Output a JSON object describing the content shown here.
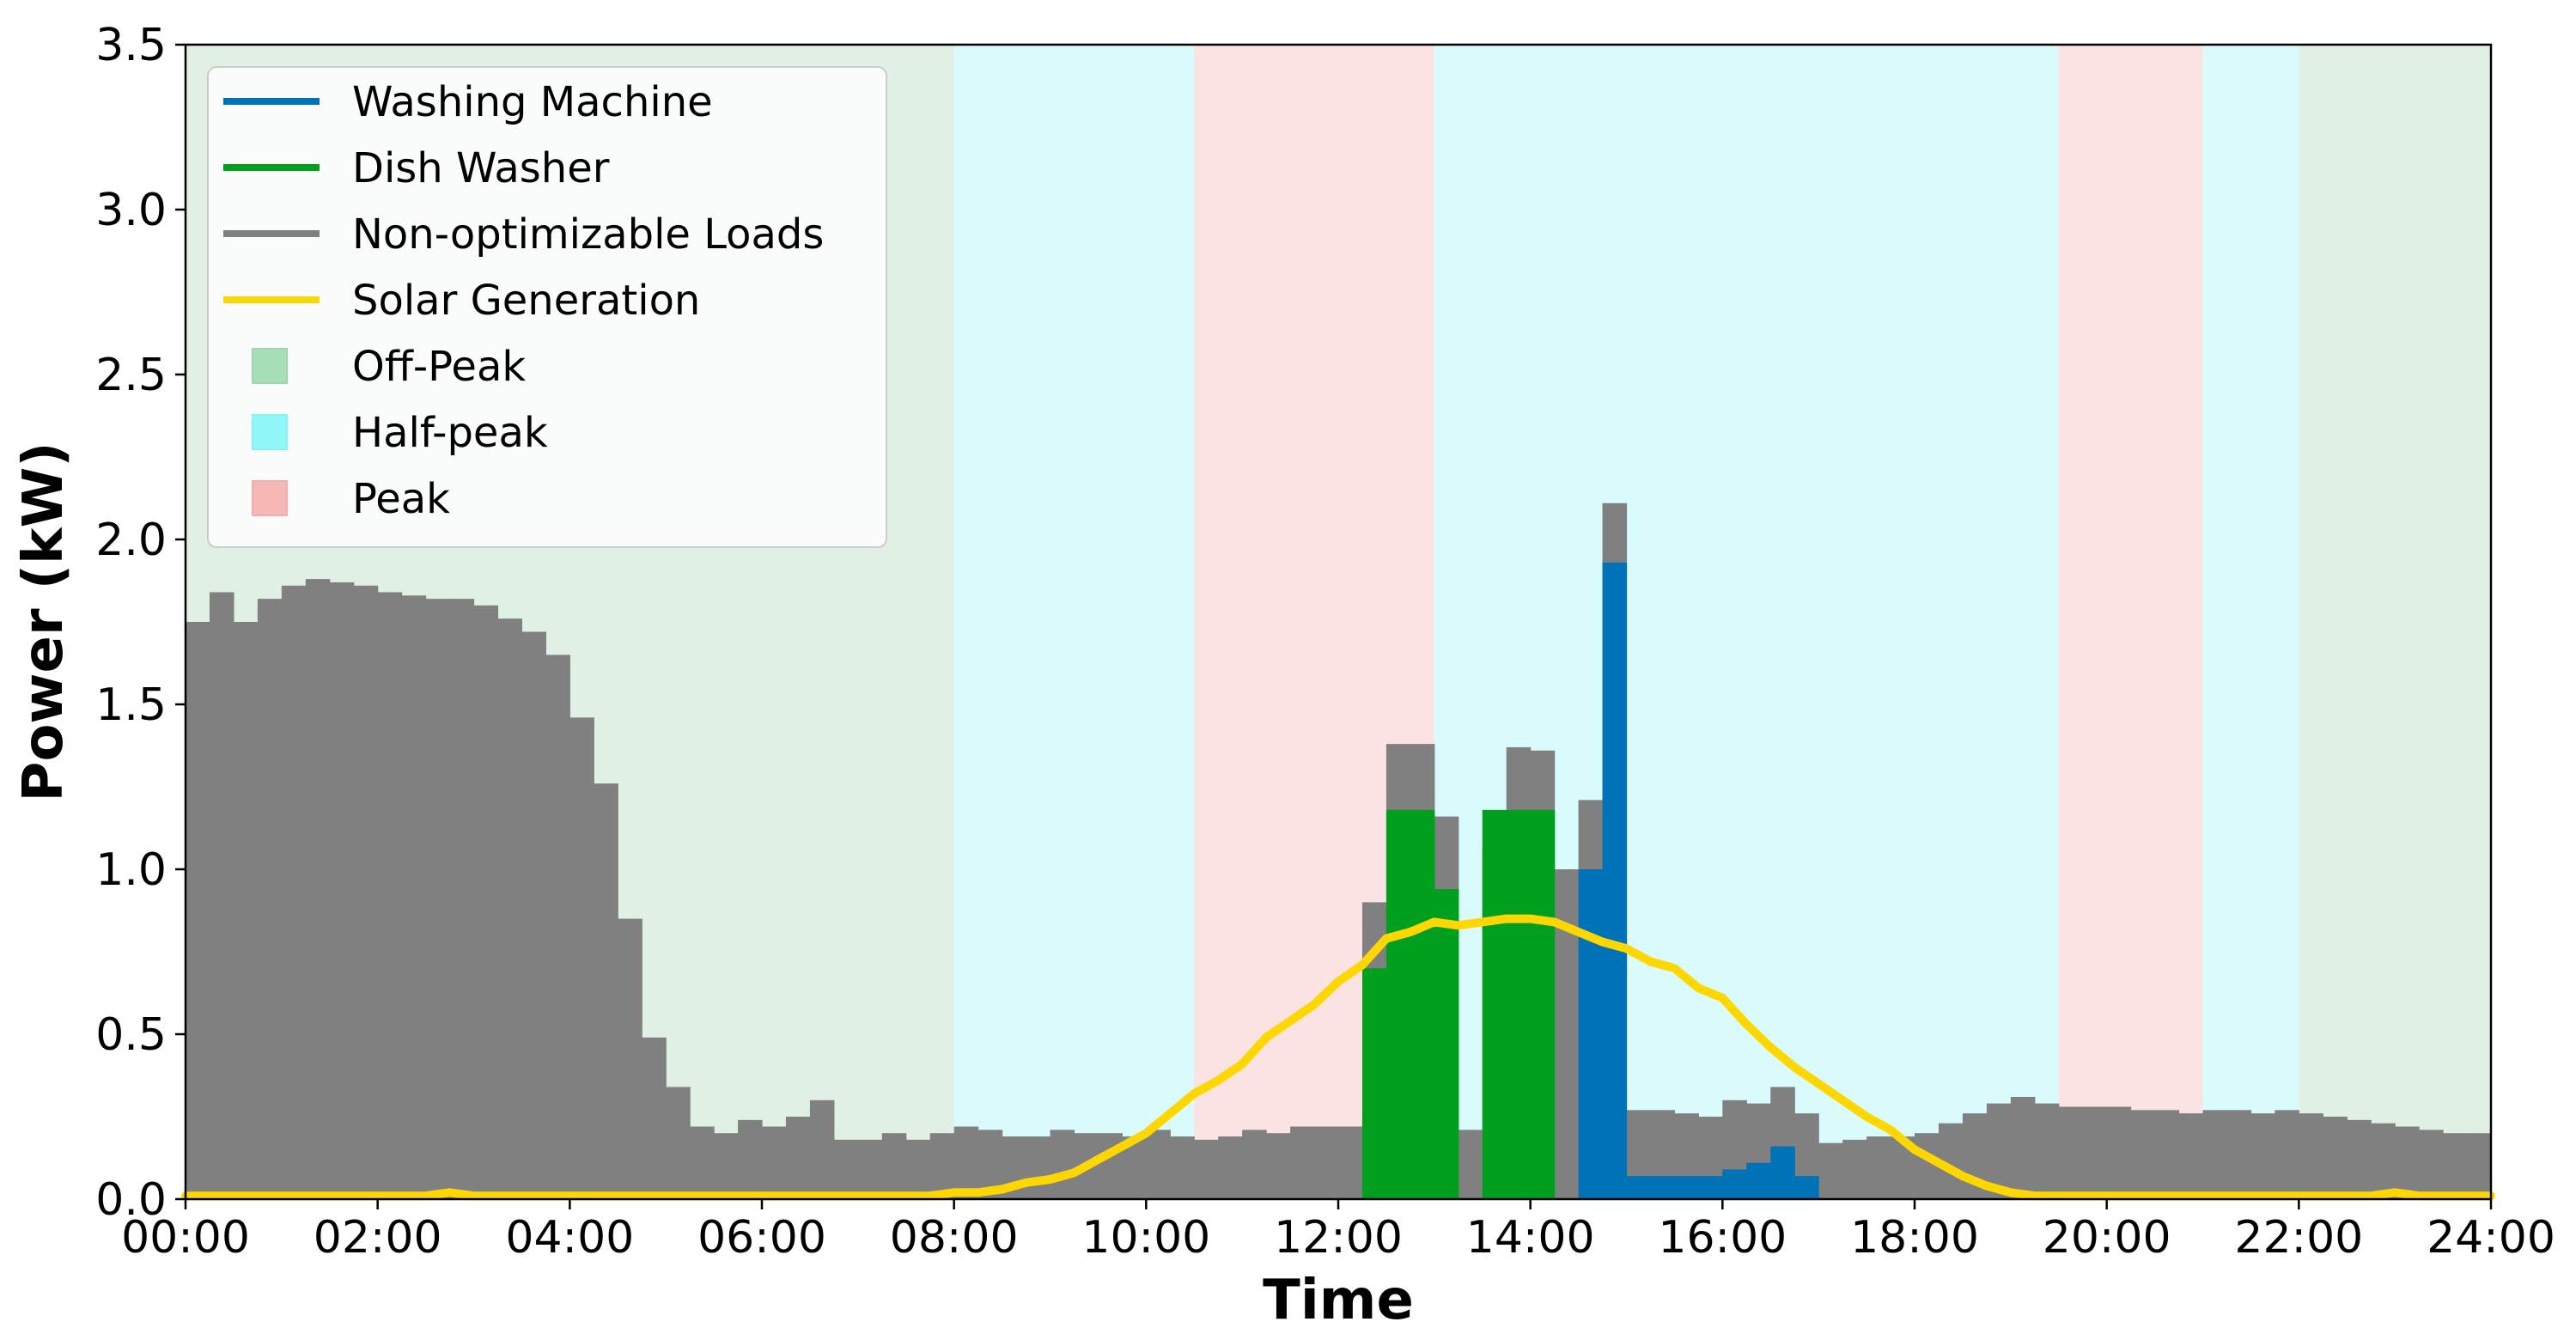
{
  "chart_data": {
    "type": "bar",
    "xlabel": "Time",
    "ylabel": "Power (kW)",
    "xlim": [
      0,
      24
    ],
    "ylim": [
      0,
      3.5
    ],
    "x_ticks": [
      "00:00",
      "02:00",
      "04:00",
      "06:00",
      "08:00",
      "10:00",
      "12:00",
      "14:00",
      "16:00",
      "18:00",
      "20:00",
      "22:00",
      "24:00"
    ],
    "y_ticks": [
      "0.0",
      "0.5",
      "1.0",
      "1.5",
      "2.0",
      "2.5",
      "3.0",
      "3.5"
    ],
    "grid": false,
    "legend_position": "top-left",
    "bin_width_hours": 0.25,
    "tariff_periods": [
      {
        "name": "Off-Peak",
        "start": 0,
        "end": 8
      },
      {
        "name": "Half-peak",
        "start": 8,
        "end": 10.5
      },
      {
        "name": "Peak",
        "start": 10.5,
        "end": 13
      },
      {
        "name": "Half-peak",
        "start": 13,
        "end": 19.5
      },
      {
        "name": "Peak",
        "start": 19.5,
        "end": 21
      },
      {
        "name": "Half-peak",
        "start": 21,
        "end": 22
      },
      {
        "name": "Off-Peak",
        "start": 22,
        "end": 24
      }
    ],
    "tariff_colors": {
      "Off-Peak": "#e0f0e4",
      "Half-peak": "#d9fbfb",
      "Peak": "#fce3e3"
    },
    "series": [
      {
        "name": "Non-optimizable Loads",
        "kind": "bar_total",
        "color": "#808080",
        "values": [
          1.75,
          1.84,
          1.75,
          1.82,
          1.86,
          1.88,
          1.87,
          1.86,
          1.84,
          1.83,
          1.82,
          1.82,
          1.8,
          1.76,
          1.72,
          1.65,
          1.46,
          1.26,
          0.85,
          0.49,
          0.34,
          0.22,
          0.2,
          0.24,
          0.22,
          0.25,
          0.3,
          0.18,
          0.18,
          0.2,
          0.18,
          0.2,
          0.22,
          0.21,
          0.19,
          0.19,
          0.21,
          0.2,
          0.2,
          0.19,
          0.21,
          0.19,
          0.18,
          0.19,
          0.21,
          0.2,
          0.22,
          0.22,
          0.22,
          0.9,
          1.38,
          1.38,
          1.16,
          0.21,
          1.06,
          1.37,
          1.36,
          1.0,
          1.21,
          2.11,
          0.27,
          0.27,
          0.26,
          0.25,
          0.3,
          0.29,
          0.34,
          0.26,
          0.17,
          0.18,
          0.19,
          0.19,
          0.2,
          0.23,
          0.26,
          0.29,
          0.31,
          0.29,
          0.28,
          0.28,
          0.28,
          0.27,
          0.27,
          0.26,
          0.27,
          0.27,
          0.26,
          0.27,
          0.26,
          0.25,
          0.24,
          0.23,
          0.22,
          0.21,
          0.2,
          0.2
        ]
      },
      {
        "name": "Dish Washer",
        "kind": "bar",
        "color": "#00a01e",
        "values": [
          0,
          0,
          0,
          0,
          0,
          0,
          0,
          0,
          0,
          0,
          0,
          0,
          0,
          0,
          0,
          0,
          0,
          0,
          0,
          0,
          0,
          0,
          0,
          0,
          0,
          0,
          0,
          0,
          0,
          0,
          0,
          0,
          0,
          0,
          0,
          0,
          0,
          0,
          0,
          0,
          0,
          0,
          0,
          0,
          0,
          0,
          0,
          0,
          0,
          0.7,
          1.18,
          1.18,
          0.94,
          0,
          1.18,
          1.18,
          1.18,
          0,
          0,
          0,
          0,
          0,
          0,
          0,
          0,
          0,
          0,
          0,
          0,
          0,
          0,
          0,
          0,
          0,
          0,
          0,
          0,
          0,
          0,
          0,
          0,
          0,
          0,
          0,
          0,
          0,
          0,
          0,
          0,
          0,
          0,
          0,
          0,
          0,
          0,
          0
        ]
      },
      {
        "name": "Washing Machine",
        "kind": "bar",
        "color": "#0072b8",
        "values": [
          0,
          0,
          0,
          0,
          0,
          0,
          0,
          0,
          0,
          0,
          0,
          0,
          0,
          0,
          0,
          0,
          0,
          0,
          0,
          0,
          0,
          0,
          0,
          0,
          0,
          0,
          0,
          0,
          0,
          0,
          0,
          0,
          0,
          0,
          0,
          0,
          0,
          0,
          0,
          0,
          0,
          0,
          0,
          0,
          0,
          0,
          0,
          0,
          0,
          0,
          0,
          0,
          0,
          0,
          0,
          0,
          0,
          0,
          1.0,
          1.93,
          0.07,
          0.07,
          0.07,
          0.07,
          0.09,
          0.11,
          0.16,
          0.07,
          0,
          0,
          0,
          0,
          0,
          0,
          0,
          0,
          0,
          0,
          0,
          0,
          0,
          0,
          0,
          0,
          0,
          0,
          0,
          0,
          0,
          0,
          0,
          0,
          0,
          0,
          0,
          0
        ]
      },
      {
        "name": "Solar Generation",
        "kind": "line",
        "color": "#ffd700",
        "x": [
          0,
          0.25,
          0.5,
          0.75,
          1,
          1.25,
          1.5,
          1.75,
          2,
          2.25,
          2.5,
          2.75,
          3,
          3.25,
          3.5,
          3.75,
          4,
          4.25,
          4.5,
          4.75,
          5,
          5.25,
          5.5,
          5.75,
          6,
          6.25,
          6.5,
          6.75,
          7,
          7.25,
          7.5,
          7.75,
          8,
          8.25,
          8.5,
          8.75,
          9,
          9.25,
          9.5,
          9.75,
          10,
          10.25,
          10.5,
          10.75,
          11,
          11.25,
          11.5,
          11.75,
          12,
          12.25,
          12.5,
          12.75,
          13,
          13.25,
          13.5,
          13.75,
          14,
          14.25,
          14.5,
          14.75,
          15,
          15.25,
          15.5,
          15.75,
          16,
          16.25,
          16.5,
          16.75,
          17,
          17.25,
          17.5,
          17.75,
          18,
          18.25,
          18.5,
          18.75,
          19,
          19.25,
          19.5,
          19.75,
          20,
          20.25,
          20.5,
          20.75,
          21,
          21.25,
          21.5,
          21.75,
          22,
          22.25,
          22.5,
          22.75,
          23,
          23.25,
          23.5,
          23.75,
          24
        ],
        "values": [
          0.01,
          0.01,
          0.01,
          0.01,
          0.01,
          0.01,
          0.01,
          0.01,
          0.01,
          0.01,
          0.01,
          0.02,
          0.01,
          0.01,
          0.01,
          0.01,
          0.01,
          0.01,
          0.01,
          0.01,
          0.01,
          0.01,
          0.01,
          0.01,
          0.01,
          0.01,
          0.01,
          0.01,
          0.01,
          0.01,
          0.01,
          0.01,
          0.02,
          0.02,
          0.03,
          0.05,
          0.06,
          0.08,
          0.12,
          0.16,
          0.2,
          0.26,
          0.32,
          0.36,
          0.41,
          0.49,
          0.54,
          0.59,
          0.66,
          0.71,
          0.79,
          0.81,
          0.84,
          0.83,
          0.84,
          0.85,
          0.85,
          0.84,
          0.81,
          0.78,
          0.76,
          0.72,
          0.7,
          0.64,
          0.61,
          0.53,
          0.46,
          0.4,
          0.35,
          0.3,
          0.25,
          0.21,
          0.15,
          0.11,
          0.07,
          0.04,
          0.02,
          0.01,
          0.01,
          0.01,
          0.01,
          0.01,
          0.01,
          0.01,
          0.01,
          0.01,
          0.01,
          0.01,
          0.01,
          0.01,
          0.01,
          0.01,
          0.02,
          0.01,
          0.01,
          0.01,
          0.01
        ]
      }
    ],
    "legend": [
      {
        "label": "Washing Machine",
        "kind": "line",
        "color": "#0072b8"
      },
      {
        "label": "Dish Washer",
        "kind": "line",
        "color": "#00a01e"
      },
      {
        "label": "Non-optimizable Loads",
        "kind": "line",
        "color": "#808080"
      },
      {
        "label": "Solar Generation",
        "kind": "line",
        "color": "#ffd700"
      },
      {
        "label": "Off-Peak",
        "kind": "patch",
        "color": "#98d8aa"
      },
      {
        "label": "Half-peak",
        "kind": "patch",
        "color": "#7ff5f5"
      },
      {
        "label": "Peak",
        "kind": "patch",
        "color": "#f6aaaa"
      }
    ]
  }
}
